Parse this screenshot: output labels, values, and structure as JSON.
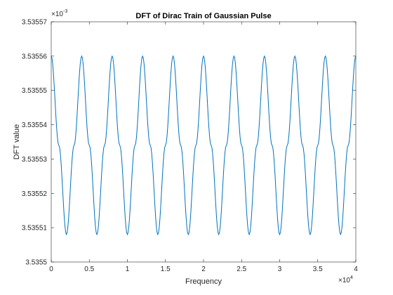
{
  "chart_data": {
    "type": "line",
    "title": "DFT of Dirac Train of Gaussian Pulse",
    "xlabel": "Frequency",
    "ylabel": "DFT value",
    "xlim": [
      0,
      40000
    ],
    "ylim": [
      0.0035355,
      0.00353557
    ],
    "x_exponent": {
      "base": "×10",
      "power": "4"
    },
    "y_exponent": {
      "base": "×10",
      "power": "-3"
    },
    "x_ticks": [
      0,
      5000,
      10000,
      15000,
      20000,
      25000,
      30000,
      35000,
      40000
    ],
    "x_tick_labels": [
      "0",
      "0.5",
      "1",
      "1.5",
      "2",
      "2.5",
      "3",
      "3.5",
      "4"
    ],
    "y_ticks": [
      0.0035355,
      0.00353551,
      0.00353552,
      0.00353553,
      0.00353554,
      0.00353555,
      0.00353556,
      0.00353557
    ],
    "y_tick_labels": [
      "3.5355",
      "3.53551",
      "3.53552",
      "3.53553",
      "3.53554",
      "3.53555",
      "3.53556",
      "3.53557"
    ],
    "grid": false,
    "series": [
      {
        "color": "#0072BD",
        "x": [
          0,
          1000,
          2000,
          3000,
          4000,
          5000,
          6000,
          7000,
          8000,
          9000,
          10000,
          11000,
          12000,
          13000,
          14000,
          15000,
          16000,
          17000,
          18000,
          19000,
          20000,
          21000,
          22000,
          23000,
          24000,
          25000,
          26000,
          27000,
          28000,
          29000,
          30000,
          31000,
          32000,
          33000,
          34000,
          35000,
          36000,
          37000,
          38000,
          39000,
          40000
        ],
        "y": [
          0.00353556,
          0.003535534,
          0.003535508,
          0.003535534,
          0.00353556,
          0.003535534,
          0.003535508,
          0.003535534,
          0.00353556,
          0.003535534,
          0.003535508,
          0.003535534,
          0.00353556,
          0.003535534,
          0.003535508,
          0.003535534,
          0.00353556,
          0.003535534,
          0.003535508,
          0.003535534,
          0.00353556,
          0.003535534,
          0.003535508,
          0.003535534,
          0.00353556,
          0.003535534,
          0.003535508,
          0.003535534,
          0.00353556,
          0.003535534,
          0.003535508,
          0.003535534,
          0.00353556,
          0.003535534,
          0.003535508,
          0.003535534,
          0.00353556,
          0.003535534,
          0.003535508,
          0.003535534,
          0.00353556
        ]
      }
    ]
  }
}
